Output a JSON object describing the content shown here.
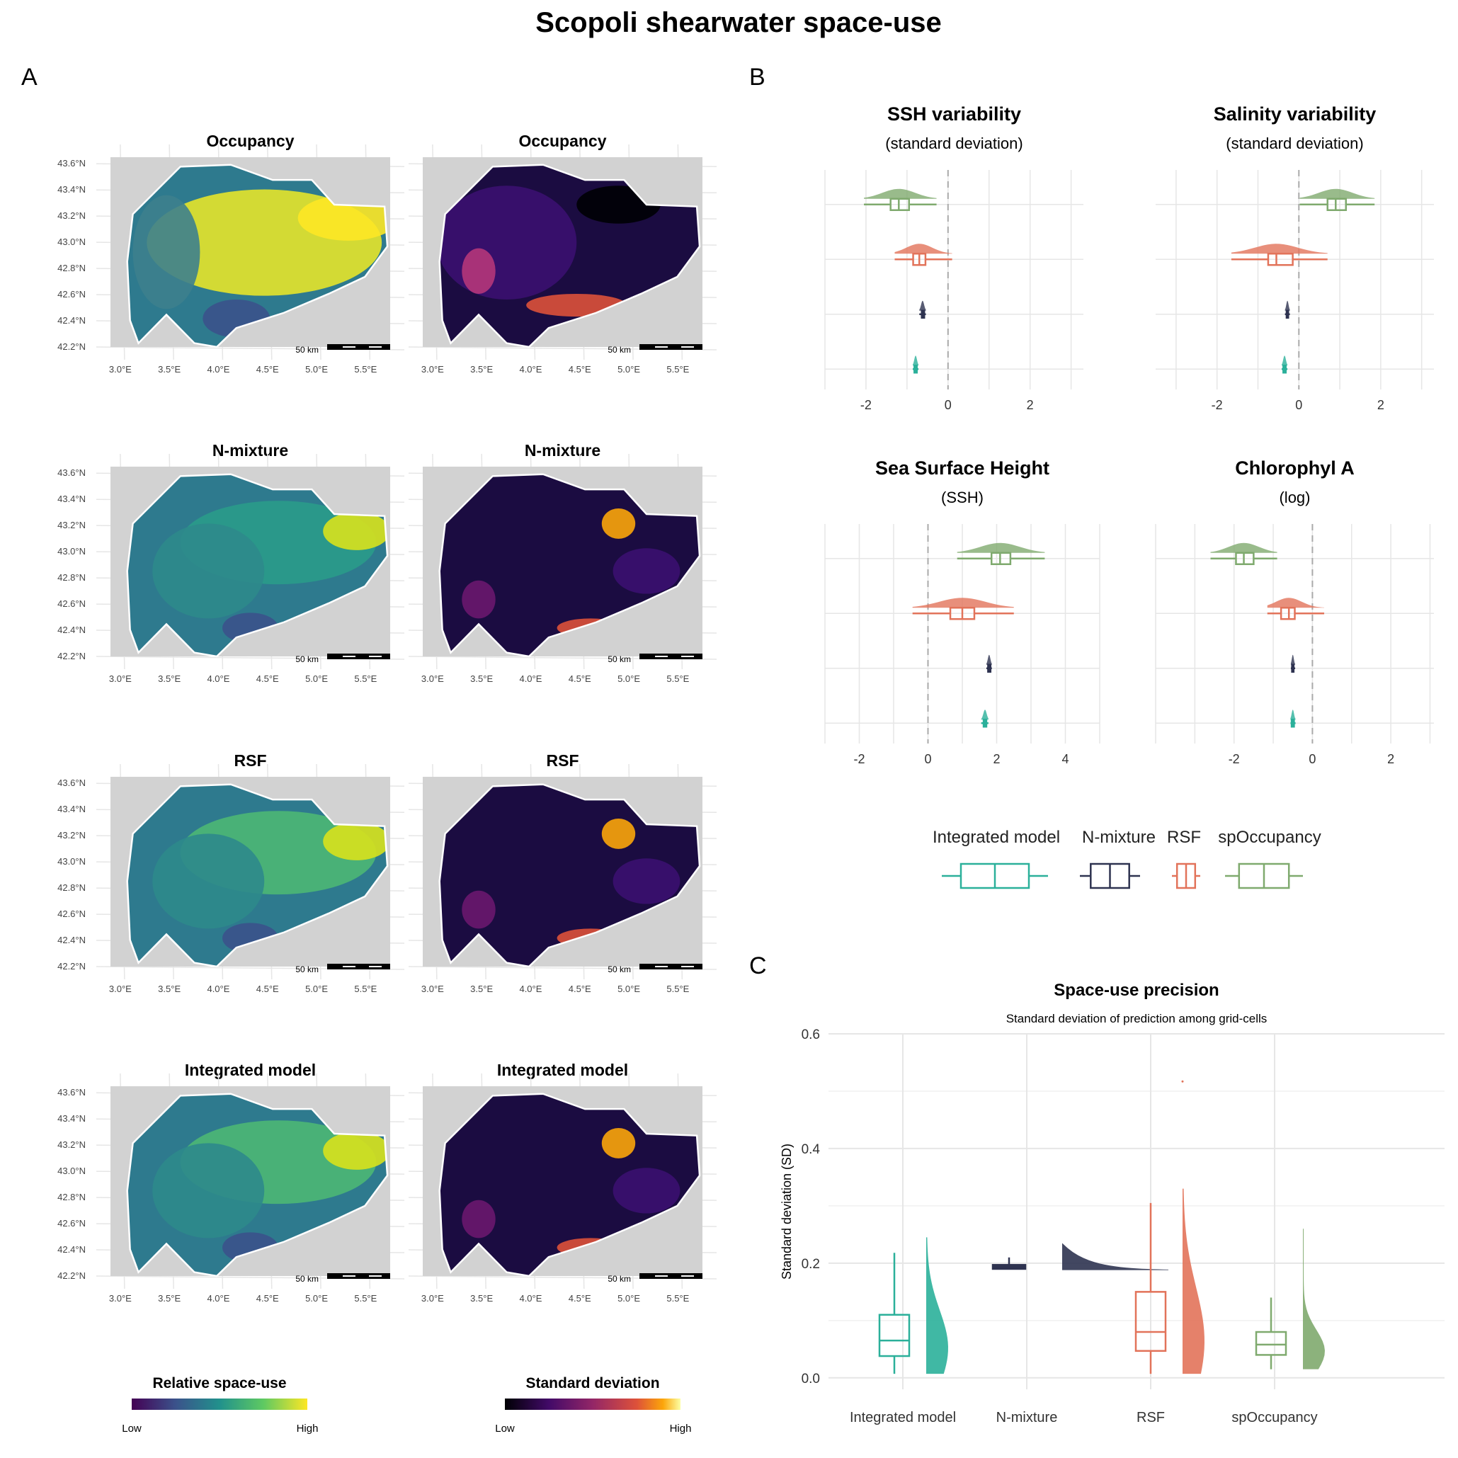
{
  "title": "Scopoli shearwater space-use",
  "panel_labels": [
    "A",
    "B",
    "C"
  ],
  "colors": {
    "integrated": "#2bb09a",
    "nmixture": "#2e3350",
    "rsf": "#e2735a",
    "spoccupancy": "#7faa6e",
    "land": "#d2d2d2",
    "grid": "#e6e6e6"
  },
  "maps": {
    "row_titles": [
      "Occupancy",
      "N-mixture",
      "RSF",
      "Integrated model"
    ],
    "lat_ticks": [
      "43.6°N",
      "43.4°N",
      "43.2°N",
      "43.0°N",
      "42.8°N",
      "42.6°N",
      "42.4°N",
      "42.2°N"
    ],
    "lon_ticks": [
      "3.0°E",
      "3.5°E",
      "4.0°E",
      "4.5°E",
      "5.0°E",
      "5.5°E"
    ],
    "scalebar": "50 km",
    "legend_mean": {
      "title": "Relative space-use",
      "low": "Low",
      "high": "High"
    },
    "legend_sd": {
      "title": "Standard deviation",
      "low": "Low",
      "high": "High"
    }
  },
  "chart_data": [
    {
      "type": "boxplot",
      "panel": "B",
      "facets": [
        {
          "title": "SSH variability",
          "subtitle": "(standard deviation)",
          "xlim": [
            -3,
            3.3
          ],
          "ticks": [
            -2,
            0,
            2
          ],
          "boxes": [
            {
              "model": "spOccupancy",
              "min": -2.05,
              "q1": -1.4,
              "median": -1.2,
              "q3": -0.95,
              "max": -0.28
            },
            {
              "model": "RSF",
              "min": -1.3,
              "q1": -0.85,
              "median": -0.7,
              "q3": -0.55,
              "max": 0.1
            },
            {
              "model": "N-mixture",
              "min": -0.7,
              "q1": -0.64,
              "median": -0.62,
              "q3": -0.58,
              "max": -0.54
            },
            {
              "model": "Integrated model",
              "min": -0.86,
              "q1": -0.82,
              "median": -0.79,
              "q3": -0.76,
              "max": -0.72
            }
          ]
        },
        {
          "title": "Salinity variability",
          "subtitle": "(standard deviation)",
          "xlim": [
            -3.5,
            3.3
          ],
          "ticks": [
            -2,
            0,
            2
          ],
          "boxes": [
            {
              "model": "spOccupancy",
              "min": 0.02,
              "q1": 0.7,
              "median": 0.9,
              "q3": 1.15,
              "max": 1.85
            },
            {
              "model": "RSF",
              "min": -1.65,
              "q1": -0.75,
              "median": -0.55,
              "q3": -0.15,
              "max": 0.7
            },
            {
              "model": "N-mixture",
              "min": -0.34,
              "q1": -0.3,
              "median": -0.28,
              "q3": -0.26,
              "max": -0.22
            },
            {
              "model": "Integrated model",
              "min": -0.42,
              "q1": -0.38,
              "median": -0.35,
              "q3": -0.32,
              "max": -0.28
            }
          ]
        },
        {
          "title": "Sea Surface Height",
          "subtitle": "(SSH)",
          "xlim": [
            -3,
            5
          ],
          "ticks": [
            -2,
            0,
            2,
            4
          ],
          "boxes": [
            {
              "model": "spOccupancy",
              "min": 0.85,
              "q1": 1.85,
              "median": 2.1,
              "q3": 2.4,
              "max": 3.4
            },
            {
              "model": "RSF",
              "min": -0.45,
              "q1": 0.65,
              "median": 1.0,
              "q3": 1.35,
              "max": 2.5
            },
            {
              "model": "N-mixture",
              "min": 1.7,
              "q1": 1.75,
              "median": 1.78,
              "q3": 1.82,
              "max": 1.86
            },
            {
              "model": "Integrated model",
              "min": 1.55,
              "q1": 1.62,
              "median": 1.66,
              "q3": 1.7,
              "max": 1.76
            }
          ]
        },
        {
          "title": "Chlorophyl A",
          "subtitle": "(log)",
          "xlim": [
            -4,
            3.1
          ],
          "ticks": [
            -2,
            0,
            2
          ],
          "boxes": [
            {
              "model": "spOccupancy",
              "min": -2.6,
              "q1": -1.95,
              "median": -1.75,
              "q3": -1.5,
              "max": -0.9
            },
            {
              "model": "RSF",
              "min": -1.15,
              "q1": -0.8,
              "median": -0.6,
              "q3": -0.45,
              "max": 0.3
            },
            {
              "model": "N-mixture",
              "min": -0.55,
              "q1": -0.52,
              "median": -0.5,
              "q3": -0.48,
              "max": -0.44
            },
            {
              "model": "Integrated model",
              "min": -0.56,
              "q1": -0.53,
              "median": -0.5,
              "q3": -0.47,
              "max": -0.43
            }
          ]
        }
      ],
      "legend": [
        "Integrated model",
        "N-mixture",
        "RSF",
        "spOccupancy"
      ]
    },
    {
      "type": "boxplot",
      "panel": "C",
      "title": "Space-use precision",
      "subtitle": "Standard deviation of prediction among grid-cells",
      "ylabel": "Standard deviation (SD)",
      "categories": [
        "Integrated model",
        "N-mixture",
        "RSF",
        "spOccupancy"
      ],
      "ylim": [
        -0.02,
        0.6
      ],
      "yticks": [
        0.0,
        0.2,
        0.4,
        0.6
      ],
      "boxes": [
        {
          "model": "Integrated model",
          "min": 0.007,
          "q1": 0.038,
          "median": 0.065,
          "q3": 0.11,
          "max": 0.218,
          "dist_max": 0.245
        },
        {
          "model": "N-mixture",
          "min": 0.188,
          "q1": 0.19,
          "median": 0.193,
          "q3": 0.197,
          "max": 0.21,
          "dist_max": 0.235
        },
        {
          "model": "RSF",
          "min": 0.007,
          "q1": 0.047,
          "median": 0.08,
          "q3": 0.15,
          "max": 0.305,
          "dist_max": 0.33,
          "outlier": 0.517
        },
        {
          "model": "spOccupancy",
          "min": 0.015,
          "q1": 0.04,
          "median": 0.058,
          "q3": 0.08,
          "max": 0.14,
          "dist_max": 0.26
        }
      ]
    }
  ]
}
